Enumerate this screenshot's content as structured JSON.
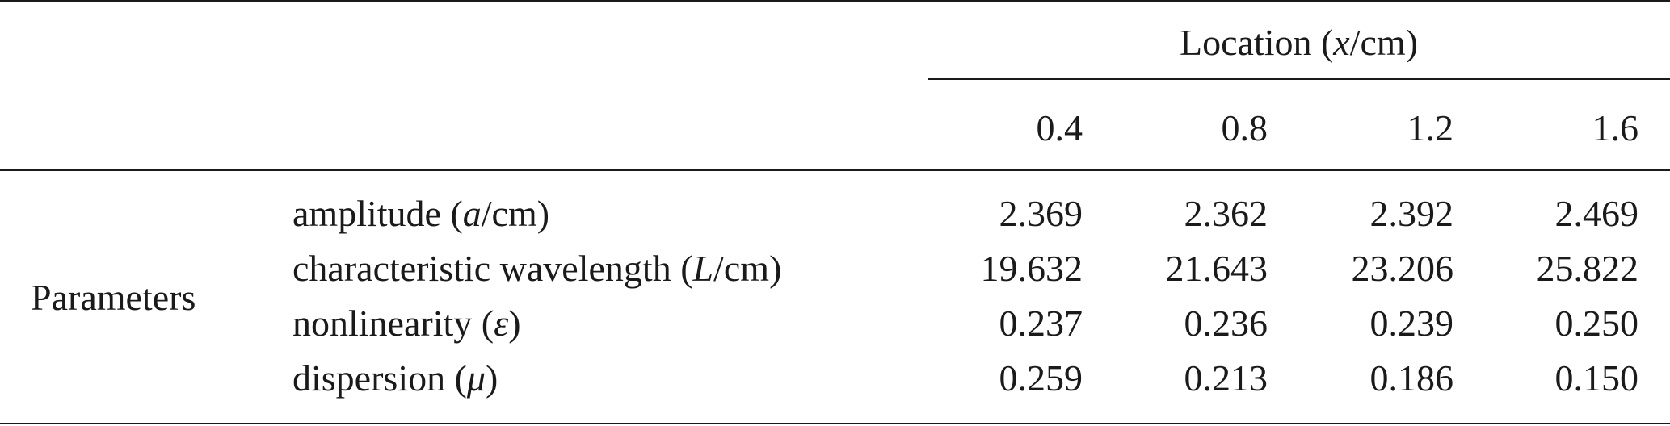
{
  "table": {
    "group_header": {
      "prefix": "Location (",
      "var": "x",
      "suffix": "/cm)"
    },
    "columns": [
      "0.4",
      "0.8",
      "1.2",
      "1.6"
    ],
    "row_group_label": "Parameters",
    "rows": [
      {
        "label_prefix": "amplitude (",
        "label_var": "a",
        "label_suffix": "/cm)",
        "values": [
          "2.369",
          "2.362",
          "2.392",
          "2.469"
        ]
      },
      {
        "label_prefix": "characteristic wavelength (",
        "label_var": "L",
        "label_suffix": "/cm)",
        "values": [
          "19.632",
          "21.643",
          "23.206",
          "25.822"
        ]
      },
      {
        "label_prefix": "nonlinearity (",
        "label_var": "ε",
        "label_suffix": ")",
        "values": [
          "0.237",
          "0.236",
          "0.239",
          "0.250"
        ]
      },
      {
        "label_prefix": "dispersion (",
        "label_var": "μ",
        "label_suffix": ")",
        "values": [
          "0.259",
          "0.213",
          "0.186",
          "0.150"
        ]
      }
    ]
  }
}
